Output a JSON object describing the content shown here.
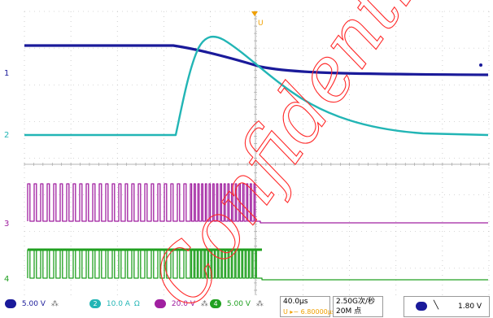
{
  "channels": [
    {
      "id": "1",
      "color": "#1a1a9a",
      "scale": "5.00 V",
      "coupling_icon": "ramp-icon"
    },
    {
      "id": "2",
      "color": "#22b5b5",
      "scale": "10.0 A",
      "offset_unit": "Ω"
    },
    {
      "id": "3",
      "color": "#a020a0",
      "scale": "20.0 V",
      "coupling_icon": "ramp-icon"
    },
    {
      "id": "4",
      "color": "#20a020",
      "scale": "5.00 V",
      "coupling_icon": "ramp-icon"
    }
  ],
  "markers": {
    "ch1": "1",
    "ch2": "2",
    "ch3": "3",
    "ch4": "4",
    "trigger_top": "U"
  },
  "timebase": {
    "scale": "40.0µs",
    "offset": "U ▸− 6.80000µs"
  },
  "acquisition": {
    "rate": "2.50G次/秒",
    "points": "20M 点"
  },
  "trigger": {
    "channel": "1",
    "slope_icon": "falling-edge-icon",
    "level": "1.80 V"
  },
  "colors": {
    "ch1": "#1a1a9a",
    "ch2": "#22b5b5",
    "ch3": "#a020a0",
    "ch4": "#20a020",
    "grid": "#b0b0b0",
    "trigger": "#f0a000"
  },
  "watermark": "Confidential"
}
